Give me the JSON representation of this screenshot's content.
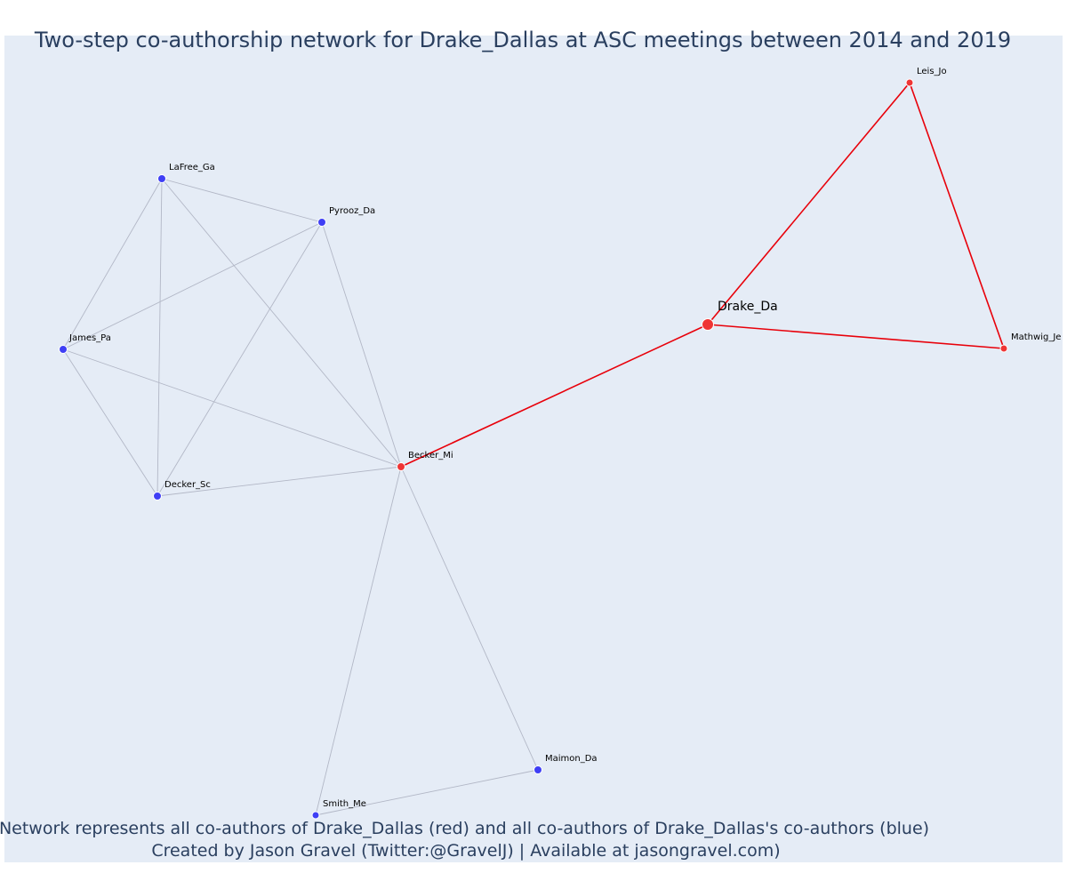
{
  "title": "Two-step co-authorship network for Drake_Dallas at ASC meetings between 2014 and 2019",
  "caption": {
    "line1": "Network represents all co-authors of Drake_Dallas (red) and all co-authors of Drake_Dallas's co-authors (blue)",
    "line2": "Created by Jason Gravel (Twitter:@GravelJ) | Available at jasongravel.com)"
  },
  "colors": {
    "plot_background": "#e5ecf6",
    "focal_node": "#ef3535",
    "first_degree_node": "#ef3535",
    "second_degree_node": "#3f3ff5",
    "focal_edge": "#e8000a",
    "other_edge": "#b2b7c6",
    "text": "#2a3f5f"
  },
  "chart_data": {
    "type": "network",
    "title": "Two-step co-authorship network for Drake_Dallas at ASC meetings between 2014 and 2019",
    "focal_author": "Drake_Da",
    "nodes": [
      {
        "id": "Drake_Da",
        "label": "Drake_Da",
        "group": "focal"
      },
      {
        "id": "Leis_Jo",
        "label": "Leis_Jo",
        "group": "coauthor"
      },
      {
        "id": "Mathwig_Je",
        "label": "Mathwig_Je",
        "group": "coauthor"
      },
      {
        "id": "Becker_Mi",
        "label": "Becker_Mi",
        "group": "coauthor"
      },
      {
        "id": "LaFree_Ga",
        "label": "LaFree_Ga",
        "group": "second_degree"
      },
      {
        "id": "Pyrooz_Da",
        "label": "Pyrooz_Da",
        "group": "second_degree"
      },
      {
        "id": "James_Pa",
        "label": "James_Pa",
        "group": "second_degree"
      },
      {
        "id": "Decker_Sc",
        "label": "Decker_Sc",
        "group": "second_degree"
      },
      {
        "id": "Maimon_Da",
        "label": "Maimon_Da",
        "group": "second_degree"
      },
      {
        "id": "Smith_Me",
        "label": "Smith_Me",
        "group": "second_degree"
      }
    ],
    "edges": [
      {
        "source": "Drake_Da",
        "target": "Leis_Jo",
        "group": "focal"
      },
      {
        "source": "Drake_Da",
        "target": "Mathwig_Je",
        "group": "focal"
      },
      {
        "source": "Leis_Jo",
        "target": "Mathwig_Je",
        "group": "focal"
      },
      {
        "source": "Drake_Da",
        "target": "Becker_Mi",
        "group": "focal"
      },
      {
        "source": "LaFree_Ga",
        "target": "Pyrooz_Da",
        "group": "other"
      },
      {
        "source": "LaFree_Ga",
        "target": "James_Pa",
        "group": "other"
      },
      {
        "source": "LaFree_Ga",
        "target": "Decker_Sc",
        "group": "other"
      },
      {
        "source": "LaFree_Ga",
        "target": "Becker_Mi",
        "group": "other"
      },
      {
        "source": "Pyrooz_Da",
        "target": "James_Pa",
        "group": "other"
      },
      {
        "source": "Pyrooz_Da",
        "target": "Decker_Sc",
        "group": "other"
      },
      {
        "source": "Pyrooz_Da",
        "target": "Becker_Mi",
        "group": "other"
      },
      {
        "source": "James_Pa",
        "target": "Decker_Sc",
        "group": "other"
      },
      {
        "source": "James_Pa",
        "target": "Becker_Mi",
        "group": "other"
      },
      {
        "source": "Decker_Sc",
        "target": "Becker_Mi",
        "group": "other"
      },
      {
        "source": "Becker_Mi",
        "target": "Maimon_Da",
        "group": "other"
      },
      {
        "source": "Becker_Mi",
        "target": "Smith_Me",
        "group": "other"
      },
      {
        "source": "Maimon_Da",
        "target": "Smith_Me",
        "group": "other"
      }
    ]
  }
}
